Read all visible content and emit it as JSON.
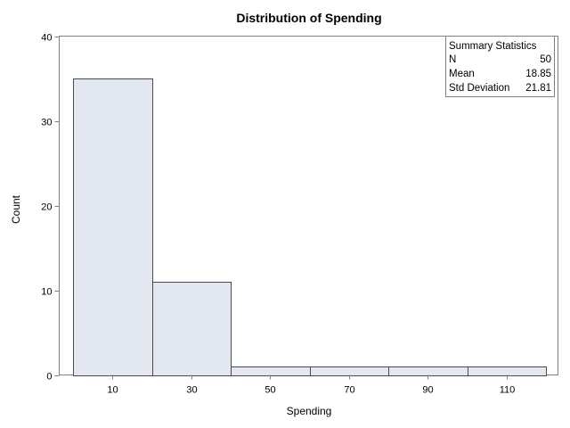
{
  "chart_data": {
    "type": "bar",
    "title": "Distribution of Spending",
    "xlabel": "Spending",
    "ylabel": "Count",
    "bins": [
      {
        "midpoint": 10,
        "start": 0,
        "end": 20,
        "count": 35
      },
      {
        "midpoint": 30,
        "start": 20,
        "end": 40,
        "count": 11
      },
      {
        "midpoint": 50,
        "start": 40,
        "end": 60,
        "count": 1
      },
      {
        "midpoint": 70,
        "start": 60,
        "end": 80,
        "count": 1
      },
      {
        "midpoint": 90,
        "start": 80,
        "end": 100,
        "count": 1
      },
      {
        "midpoint": 110,
        "start": 100,
        "end": 120,
        "count": 1
      }
    ],
    "xlim": [
      -3.5,
      123
    ],
    "ylim": [
      0,
      40
    ],
    "x_ticks": [
      "10",
      "30",
      "50",
      "70",
      "90",
      "110"
    ],
    "y_ticks": [
      "0",
      "10",
      "20",
      "30",
      "40"
    ],
    "grid": false,
    "bar_fill": "#e3e7f0",
    "bar_stroke": "#4a4a4a",
    "inset_placement": "top-right",
    "summary_statistics": {
      "title": "Summary Statistics",
      "rows": [
        {
          "label": "N",
          "value": "50"
        },
        {
          "label": "Mean",
          "value": "18.85"
        },
        {
          "label": "Std Deviation",
          "value": "21.81"
        }
      ]
    }
  }
}
